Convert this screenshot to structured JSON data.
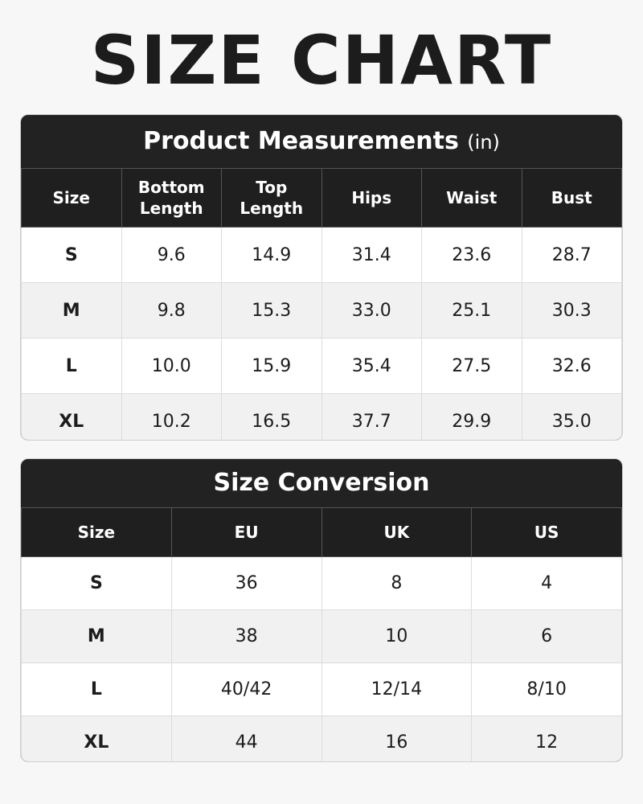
{
  "title": "SIZE CHART",
  "measurements": {
    "title": "Product Measurements",
    "unit": "(in)",
    "headers": [
      "Size",
      "Bottom Length",
      "Top Length",
      "Hips",
      "Waist",
      "Bust"
    ],
    "rows": [
      [
        "S",
        "9.6",
        "14.9",
        "31.4",
        "23.6",
        "28.7"
      ],
      [
        "M",
        "9.8",
        "15.3",
        "33.0",
        "25.1",
        "30.3"
      ],
      [
        "L",
        "10.0",
        "15.9",
        "35.4",
        "27.5",
        "32.6"
      ],
      [
        "XL",
        "10.2",
        "16.5",
        "37.7",
        "29.9",
        "35.0"
      ]
    ]
  },
  "conversion": {
    "title": "Size Conversion",
    "headers": [
      "Size",
      "EU",
      "UK",
      "US"
    ],
    "rows": [
      [
        "S",
        "36",
        "8",
        "4"
      ],
      [
        "M",
        "38",
        "10",
        "6"
      ],
      [
        "L",
        "40/42",
        "12/14",
        "8/10"
      ],
      [
        "XL",
        "44",
        "16",
        "12"
      ]
    ]
  }
}
